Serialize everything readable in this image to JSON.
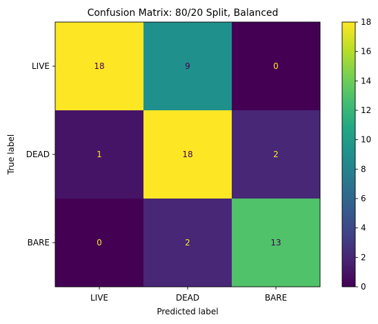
{
  "chart_data": {
    "type": "heatmap",
    "title": "Confusion Matrix: 80/20 Split, Balanced",
    "xlabel": "Predicted label",
    "ylabel": "True label",
    "x_categories": [
      "LIVE",
      "DEAD",
      "BARE"
    ],
    "y_categories": [
      "LIVE",
      "DEAD",
      "BARE"
    ],
    "values": [
      [
        18,
        9,
        0
      ],
      [
        1,
        18,
        2
      ],
      [
        0,
        2,
        13
      ]
    ],
    "colorscale": "viridis",
    "colorbar": {
      "range": [
        0,
        18
      ],
      "ticks": [
        "0",
        "2",
        "4",
        "6",
        "8",
        "10",
        "12",
        "14",
        "16",
        "18"
      ]
    },
    "annotation_colors": {
      "on_dark": "#fde725",
      "on_light": "#440154"
    }
  }
}
